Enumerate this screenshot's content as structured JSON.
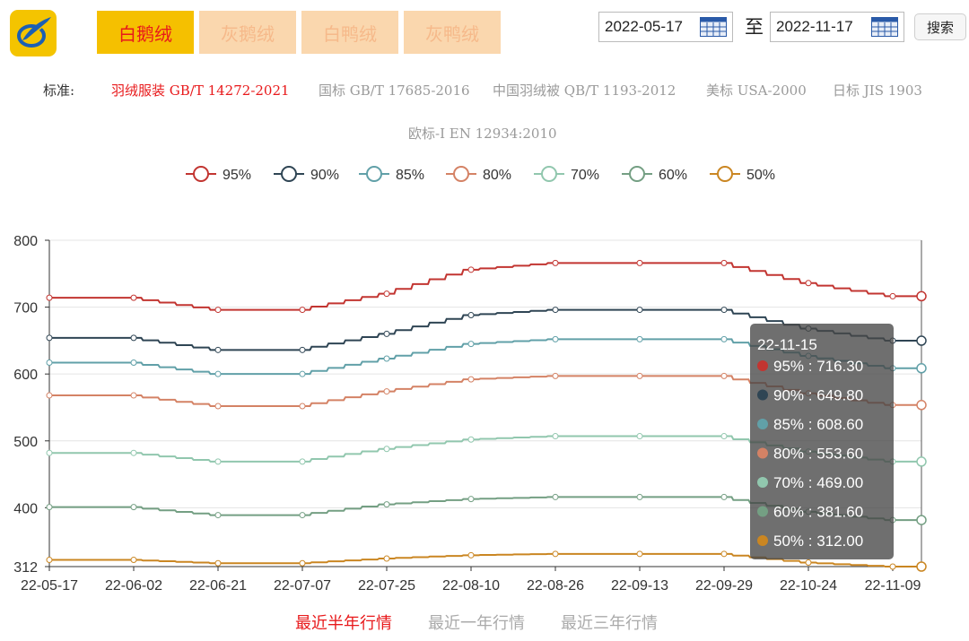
{
  "header": {
    "tabs": [
      {
        "label": "白鹅绒",
        "active": true
      },
      {
        "label": "灰鹅绒",
        "active": false
      },
      {
        "label": "白鸭绒",
        "active": false
      },
      {
        "label": "灰鸭绒",
        "active": false
      }
    ],
    "date_from": "2022-05-17",
    "date_to": "2022-11-17",
    "date_sep": "至",
    "search_label": "搜索"
  },
  "standards": {
    "label": "标准:",
    "items": [
      {
        "label": "羽绒服装 GB/T 14272-2021",
        "active": true
      },
      {
        "label": "国标 GB/T 17685-2016",
        "active": false
      },
      {
        "label": "中国羽绒被 QB/T 1193-2012",
        "active": false
      },
      {
        "label": "美标 USA-2000",
        "active": false
      },
      {
        "label": "日标 JIS 1903",
        "active": false
      },
      {
        "label": "欧标-I EN 12934:2010",
        "active": false
      }
    ]
  },
  "ranges": [
    {
      "label": "最近半年行情",
      "active": true
    },
    {
      "label": "最近一年行情",
      "active": false
    },
    {
      "label": "最近三年行情",
      "active": false
    }
  ],
  "chart_data": {
    "type": "line",
    "x": [
      "22-05-17",
      "22-06-02",
      "22-06-21",
      "22-07-07",
      "22-07-25",
      "22-08-10",
      "22-08-26",
      "22-09-13",
      "22-09-29",
      "22-10-24",
      "22-11-09",
      "22-11-15"
    ],
    "x_tick_labels": [
      "22-05-17",
      "22-06-02",
      "22-06-21",
      "22-07-07",
      "22-07-25",
      "22-08-10",
      "22-08-26",
      "22-09-13",
      "22-09-29",
      "22-10-24",
      "22-11-09"
    ],
    "y_tick_labels": [
      "312",
      "400",
      "500",
      "600",
      "700",
      "800"
    ],
    "ylim": [
      312,
      800
    ],
    "grid": true,
    "legend_position": "top",
    "series": [
      {
        "name": "95%",
        "color": "#c23531",
        "values": [
          714,
          714,
          696,
          696,
          720,
          756,
          766,
          766,
          766,
          736,
          716.3,
          716.3
        ]
      },
      {
        "name": "90%",
        "color": "#2f4554",
        "values": [
          654,
          654,
          636,
          636,
          660,
          688,
          696,
          696,
          696,
          668,
          649.8,
          649.8
        ]
      },
      {
        "name": "85%",
        "color": "#61a0a8",
        "values": [
          617,
          617,
          600,
          600,
          623,
          645,
          652,
          652,
          652,
          627,
          608.6,
          608.6
        ]
      },
      {
        "name": "80%",
        "color": "#d48265",
        "values": [
          568,
          568,
          552,
          552,
          574,
          592,
          597,
          597,
          597,
          571,
          553.6,
          553.6
        ]
      },
      {
        "name": "70%",
        "color": "#91c7ae",
        "values": [
          482,
          482,
          469,
          469,
          488,
          502,
          507,
          507,
          507,
          484,
          469,
          469
        ]
      },
      {
        "name": "60%",
        "color": "#749f83",
        "values": [
          401,
          401,
          389,
          389,
          405,
          413,
          416,
          416,
          416,
          394,
          381.6,
          381.6
        ]
      },
      {
        "name": "50%",
        "color": "#ca8622",
        "values": [
          322,
          322,
          317,
          317,
          324,
          329,
          331,
          331,
          331,
          318,
          312,
          312
        ]
      }
    ],
    "tooltip": {
      "title": "22-11-15",
      "rows": [
        "95% : 716.30",
        "90% : 649.80",
        "85% : 608.60",
        "80% : 553.60",
        "70% : 469.00",
        "60% : 381.60",
        "50% : 312.00"
      ]
    }
  }
}
